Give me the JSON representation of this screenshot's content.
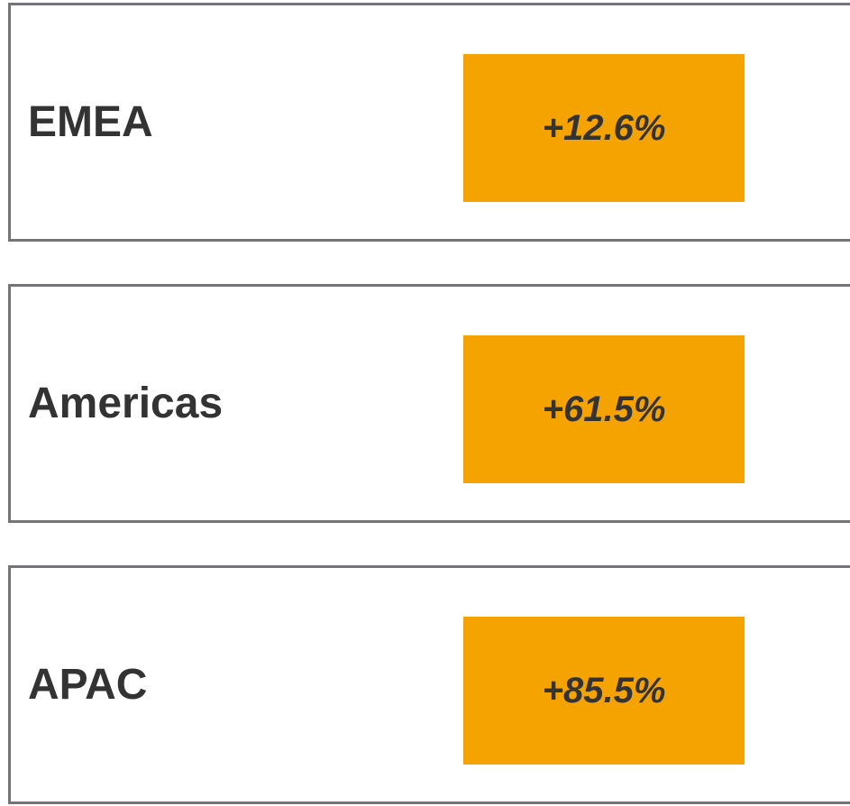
{
  "rows": [
    {
      "label": "EMEA",
      "value": "+12.6%"
    },
    {
      "label": "Americas",
      "value": "+61.5%"
    },
    {
      "label": "APAC",
      "value": "+85.5%"
    }
  ]
}
